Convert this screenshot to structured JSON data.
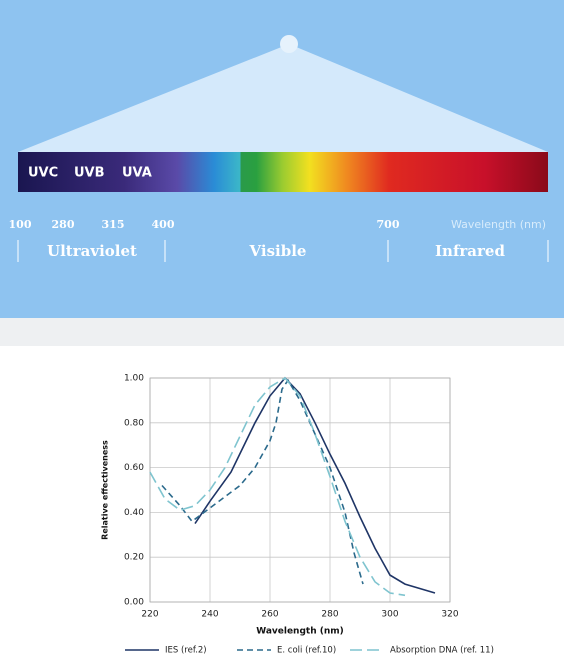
{
  "spectrum": {
    "bands": [
      "UVC",
      "UVB",
      "UVA"
    ],
    "ticks": [
      100,
      280,
      315,
      400,
      700
    ],
    "axis_label": "Wavelength (nm)",
    "regions": [
      "Ultraviolet",
      "Visible",
      "Infrared"
    ]
  },
  "chart_data": {
    "type": "line",
    "x_label": "Wavelength (nm)",
    "y_label": "Relative effectiveness",
    "xlim": [
      220,
      320
    ],
    "xticks": [
      220,
      240,
      260,
      280,
      300,
      320
    ],
    "ylim": [
      0,
      1
    ],
    "yticks": [
      {
        "value": 0,
        "label": "0.00"
      },
      {
        "value": 0.2,
        "label": "0.20"
      },
      {
        "value": 0.4,
        "label": "0.40"
      },
      {
        "value": 0.6,
        "label": "0.60"
      },
      {
        "value": 0.8,
        "label": "0.80"
      },
      {
        "value": 1,
        "label": "1.00"
      }
    ],
    "grid": true,
    "series": [
      {
        "name": "IES (ref.2)",
        "color": "#1f3566",
        "dash": "none",
        "x": [
          235,
          240,
          247,
          255,
          260,
          265,
          270,
          275,
          280,
          285,
          290,
          295,
          300,
          305,
          315
        ],
        "values": [
          0.35,
          0.45,
          0.58,
          0.8,
          0.92,
          1.0,
          0.93,
          0.8,
          0.66,
          0.53,
          0.38,
          0.24,
          0.12,
          0.08,
          0.04
        ]
      },
      {
        "name": "E. coli (ref.10)",
        "color": "#2b6a8c",
        "dash": "6 4",
        "x": [
          224,
          230,
          234,
          240,
          250,
          255,
          260,
          262,
          264,
          266,
          270,
          275,
          280,
          285,
          288,
          291
        ],
        "values": [
          0.52,
          0.43,
          0.36,
          0.42,
          0.52,
          0.6,
          0.72,
          0.8,
          0.95,
          0.99,
          0.9,
          0.75,
          0.6,
          0.4,
          0.22,
          0.08
        ]
      },
      {
        "name": "Absorption DNA (ref. 11)",
        "color": "#7fc4cf",
        "dash": "12 5",
        "x": [
          220,
          225,
          230,
          235,
          240,
          245,
          250,
          255,
          260,
          265,
          270,
          275,
          280,
          285,
          290,
          295,
          300,
          305
        ],
        "values": [
          0.58,
          0.46,
          0.41,
          0.43,
          0.5,
          0.6,
          0.74,
          0.88,
          0.96,
          1.0,
          0.92,
          0.75,
          0.56,
          0.36,
          0.2,
          0.09,
          0.04,
          0.03
        ]
      }
    ]
  }
}
